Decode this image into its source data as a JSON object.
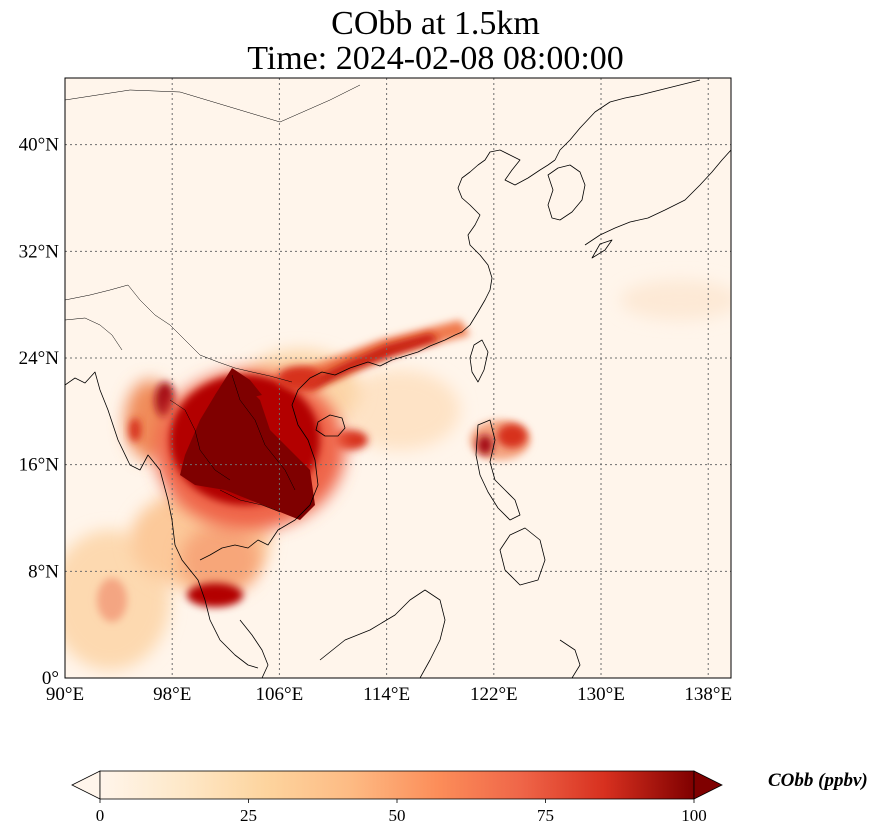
{
  "title_line1": "CObb at 1.5km",
  "title_line2": "Time: 2024-02-08 08:00:00",
  "map": {
    "lon_ticks": [
      {
        "value": 90,
        "label": "90°E"
      },
      {
        "value": 98,
        "label": "98°E"
      },
      {
        "value": 106,
        "label": "106°E"
      },
      {
        "value": 114,
        "label": "114°E"
      },
      {
        "value": 122,
        "label": "122°E"
      },
      {
        "value": 130,
        "label": "130°E"
      },
      {
        "value": 138,
        "label": "138°E"
      }
    ],
    "lat_ticks": [
      {
        "value": 0,
        "label": "0°"
      },
      {
        "value": 8,
        "label": "8°N"
      },
      {
        "value": 16,
        "label": "16°N"
      },
      {
        "value": 24,
        "label": "24°N"
      },
      {
        "value": 32,
        "label": "32°N"
      },
      {
        "value": 40,
        "label": "40°N"
      }
    ],
    "lon_range": [
      90,
      139.7
    ],
    "lat_range": [
      0,
      45
    ],
    "gridlines": "dotted",
    "plumes": [
      {
        "name": "indochina-core",
        "lon": 104.5,
        "lat": 16.5,
        "value": 100
      },
      {
        "name": "north-laos",
        "lon": 102.5,
        "lat": 20.5,
        "value": 100
      },
      {
        "name": "myanmar-border",
        "lon": 98.5,
        "lat": 20.0,
        "value": 90
      },
      {
        "name": "south-china-band",
        "lon": 113.0,
        "lat": 24.0,
        "value": 80
      },
      {
        "name": "hainan",
        "lon": 111.0,
        "lat": 17.5,
        "value": 85
      },
      {
        "name": "luzon",
        "lon": 123.0,
        "lat": 18.0,
        "value": 90
      },
      {
        "name": "gulf-of-thailand",
        "lon": 100.5,
        "lat": 6.5,
        "value": 90
      },
      {
        "name": "andaman",
        "lon": 93.5,
        "lat": 6.5,
        "value": 55
      }
    ]
  },
  "colorbar": {
    "label": "CObb (ppbv)",
    "ticks": [
      {
        "value": 0,
        "label": "0"
      },
      {
        "value": 25,
        "label": "25"
      },
      {
        "value": 50,
        "label": "50"
      },
      {
        "value": 75,
        "label": "75"
      },
      {
        "value": 100,
        "label": "100"
      }
    ],
    "range": [
      0,
      100
    ],
    "colormap": [
      "#fff5eb",
      "#fdd49e",
      "#fdbb84",
      "#fc8d59",
      "#ef6548",
      "#d7301f",
      "#b30000",
      "#7f0000"
    ]
  }
}
